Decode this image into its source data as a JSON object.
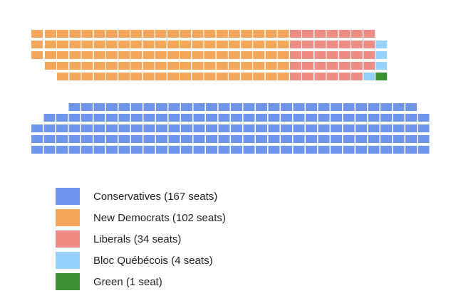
{
  "chart_data": {
    "type": "waffle",
    "total_seats": 308,
    "series": [
      {
        "name": "Conservatives",
        "label": "Conservatives (167 seats)",
        "value": 167,
        "color": "#6f95ea"
      },
      {
        "name": "New Democrats",
        "label": "New Democrats (102 seats)",
        "value": 102,
        "color": "#f2a75c"
      },
      {
        "name": "Liberals",
        "label": "Liberals (34 seats)",
        "value": 34,
        "color": "#ee8c86"
      },
      {
        "name": "Bloc Québécois",
        "label": "Bloc Québécois (4 seats)",
        "value": 4,
        "color": "#96d2fb"
      },
      {
        "name": "Green",
        "label": "Green (1 seat)",
        "value": 1,
        "color": "#3c9137"
      }
    ],
    "legend_position": "bottom-left"
  }
}
